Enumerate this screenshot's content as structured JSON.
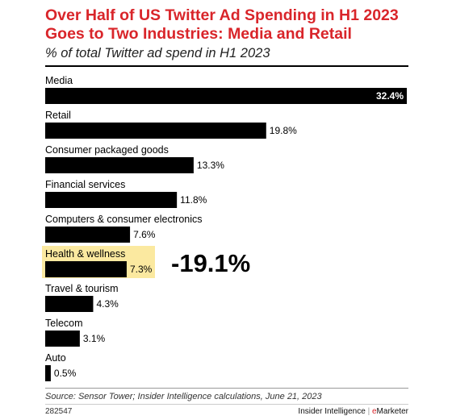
{
  "header": {
    "title": "Over Half of US Twitter Ad Spending in H1 2023 Goes to Two Industries: Media and Retail",
    "subtitle": "% of total Twitter ad spend in H1 2023"
  },
  "chart_data": {
    "type": "bar",
    "orientation": "horizontal",
    "title": "Over Half of US Twitter Ad Spending in H1 2023 Goes to Two Industries: Media and Retail",
    "subtitle": "% of total Twitter ad spend in H1 2023",
    "categories": [
      "Media",
      "Retail",
      "Consumer packaged goods",
      "Financial services",
      "Computers & consumer electronics",
      "Health & wellness",
      "Travel & tourism",
      "Telecom",
      "Auto"
    ],
    "values": [
      32.4,
      19.8,
      13.3,
      11.8,
      7.6,
      7.3,
      4.3,
      3.1,
      0.5
    ],
    "value_labels": [
      "32.4%",
      "19.8%",
      "13.3%",
      "11.8%",
      "7.6%",
      "7.3%",
      "4.3%",
      "3.1%",
      "0.5%"
    ],
    "xlim": [
      0,
      32.4
    ],
    "grid": false,
    "highlight": {
      "category": "Health & wellness",
      "color": "#fbe9a0"
    },
    "annotation": "-19.1%",
    "bar_color": "#000000"
  },
  "footer": {
    "source": "Source: Sensor Tower; Insider Intelligence calculations, June 21, 2023",
    "chart_id": "282547",
    "brand_left": "Insider Intelligence",
    "brand_sep": "|",
    "brand_e": "e",
    "brand_right": "Marketer"
  }
}
